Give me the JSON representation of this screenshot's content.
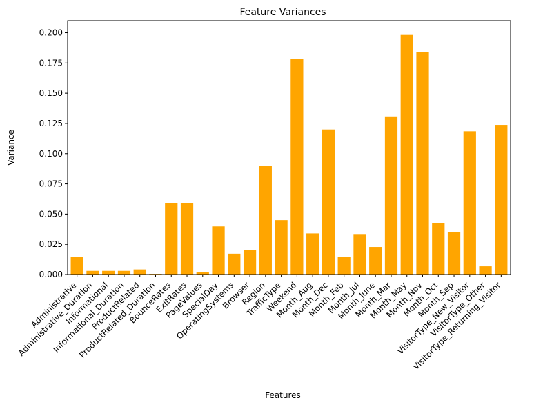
{
  "chart_data": {
    "type": "bar",
    "title": "Feature Variances",
    "xlabel": "Features",
    "ylabel": "Variance",
    "ylim": [
      0,
      0.21
    ],
    "yticks": [
      "0.000",
      "0.025",
      "0.050",
      "0.075",
      "0.100",
      "0.125",
      "0.150",
      "0.175",
      "0.200"
    ],
    "bar_color": "#ffa500",
    "categories": [
      "Administrative",
      "Administrative_Duration",
      "Informational",
      "Informational_Duration",
      "ProductRelated",
      "ProductRelated_Duration",
      "BounceRates",
      "ExitRates",
      "PageValues",
      "SpecialDay",
      "OperatingSystems",
      "Browser",
      "Region",
      "TrafficType",
      "Weekend",
      "Month_Aug",
      "Month_Dec",
      "Month_Feb",
      "Month_Jul",
      "Month_June",
      "Month_Mar",
      "Month_May",
      "Month_Nov",
      "Month_Oct",
      "Month_Sep",
      "VisitorType_New_Visitor",
      "VisitorType_Other",
      "VisitorType_Returning_Visitor"
    ],
    "values": [
      0.0148,
      0.003,
      0.003,
      0.003,
      0.0042,
      0.0005,
      0.059,
      0.059,
      0.0022,
      0.0398,
      0.0172,
      0.0205,
      0.09,
      0.045,
      0.1785,
      0.034,
      0.12,
      0.0148,
      0.0335,
      0.0228,
      0.1308,
      0.1982,
      0.1842,
      0.0428,
      0.0352,
      0.1185,
      0.0068,
      0.1238
    ]
  }
}
